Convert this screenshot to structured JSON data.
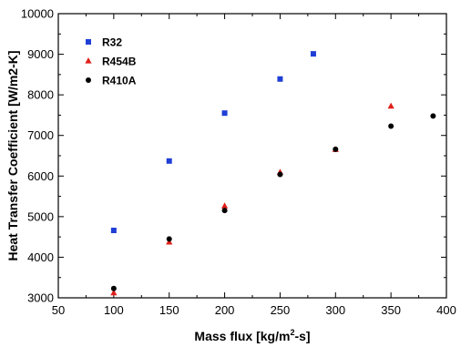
{
  "chart_data": {
    "type": "scatter",
    "title": "",
    "xlabel": "Mass flux  [kg/m",
    "xlabel_sup": "2",
    "xlabel_tail": "-s]",
    "ylabel": "Heat Transfer Coefficient [W/m2-K]",
    "xlim": [
      50,
      400
    ],
    "ylim": [
      3000,
      10000
    ],
    "xticks": [
      50,
      100,
      150,
      200,
      250,
      300,
      350,
      400
    ],
    "yticks": [
      3000,
      4000,
      5000,
      6000,
      7000,
      8000,
      9000,
      10000
    ],
    "grid": false,
    "legend_position": "top-left",
    "series": [
      {
        "name": "R32",
        "marker": "square",
        "color": "#1f3fd6",
        "x": [
          100,
          150,
          200,
          250,
          280
        ],
        "y": [
          4660,
          6370,
          7550,
          8390,
          9010
        ]
      },
      {
        "name": "R454B",
        "marker": "triangle",
        "color": "#e0201a",
        "x": [
          100,
          150,
          200,
          250,
          300,
          350
        ],
        "y": [
          3120,
          4370,
          5260,
          6090,
          6650,
          7720
        ]
      },
      {
        "name": "R410A",
        "marker": "circle",
        "color": "#000000",
        "x": [
          100,
          150,
          200,
          250,
          300,
          350,
          388
        ],
        "y": [
          3230,
          4450,
          5150,
          6040,
          6660,
          7230,
          7480
        ]
      }
    ]
  }
}
